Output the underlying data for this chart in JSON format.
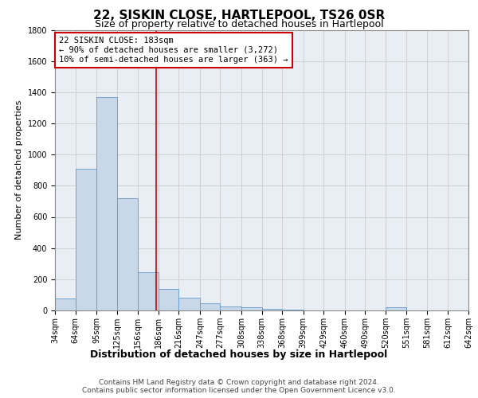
{
  "title": "22, SISKIN CLOSE, HARTLEPOOL, TS26 0SR",
  "subtitle": "Size of property relative to detached houses in Hartlepool",
  "xlabel": "Distribution of detached houses by size in Hartlepool",
  "ylabel": "Number of detached properties",
  "footer_line1": "Contains HM Land Registry data © Crown copyright and database right 2024.",
  "footer_line2": "Contains public sector information licensed under the Open Government Licence v3.0.",
  "annotation_line1": "22 SISKIN CLOSE: 183sqm",
  "annotation_line2": "← 90% of detached houses are smaller (3,272)",
  "annotation_line3": "10% of semi-detached houses are larger (363) →",
  "property_size": 183,
  "bar_left_edges": [
    34,
    64,
    95,
    125,
    156,
    186,
    216,
    247,
    277,
    308,
    338,
    368,
    399,
    429,
    460,
    490,
    520,
    551,
    581,
    612
  ],
  "bar_widths": [
    30,
    31,
    30,
    31,
    30,
    30,
    31,
    30,
    31,
    30,
    30,
    31,
    30,
    31,
    30,
    30,
    31,
    30,
    31,
    30
  ],
  "bar_heights": [
    75,
    910,
    1370,
    720,
    245,
    140,
    80,
    45,
    25,
    20,
    10,
    5,
    0,
    0,
    0,
    0,
    20,
    0,
    0,
    0
  ],
  "bar_color": "#c8d8e8",
  "bar_edge_color": "#6699cc",
  "vline_color": "#cc0000",
  "vline_x": 183,
  "annotation_box_color": "#cc0000",
  "grid_color": "#cccccc",
  "background_color": "#e8eef4",
  "ylim": [
    0,
    1800
  ],
  "yticks": [
    0,
    200,
    400,
    600,
    800,
    1000,
    1200,
    1400,
    1600,
    1800
  ],
  "xtick_labels": [
    "34sqm",
    "64sqm",
    "95sqm",
    "125sqm",
    "156sqm",
    "186sqm",
    "216sqm",
    "247sqm",
    "277sqm",
    "308sqm",
    "338sqm",
    "368sqm",
    "399sqm",
    "429sqm",
    "460sqm",
    "490sqm",
    "520sqm",
    "551sqm",
    "581sqm",
    "612sqm",
    "642sqm"
  ],
  "title_fontsize": 11,
  "subtitle_fontsize": 9,
  "xlabel_fontsize": 9,
  "ylabel_fontsize": 8,
  "tick_fontsize": 7,
  "annotation_fontsize": 7.5,
  "footer_fontsize": 6.5
}
